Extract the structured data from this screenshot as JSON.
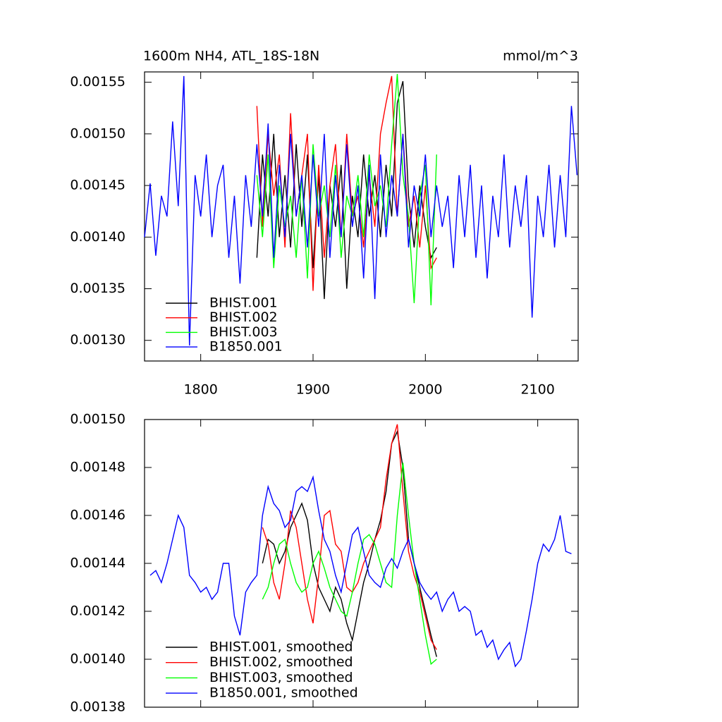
{
  "chart_data": [
    {
      "type": "line",
      "title": "1600m NH4, ATL_18S-18N",
      "units": "mmol/m^3",
      "xlim": [
        1750,
        2136
      ],
      "xticks": [
        1800,
        1900,
        2000,
        2100
      ],
      "ylim": [
        0.00128,
        0.00156
      ],
      "yticks": [
        {
          "value": 0.0013,
          "label": "0.00130"
        },
        0.00135,
        {
          "value": 0.0014,
          "label": "0.00140"
        },
        0.00145,
        {
          "value": 0.0015,
          "label": "0.00150"
        },
        0.00155
      ],
      "legend": "lower-left",
      "series": [
        {
          "name": "BHIST.001",
          "color": "#000000",
          "x": [
            1850,
            1855,
            1860,
            1865,
            1870,
            1875,
            1880,
            1885,
            1890,
            1895,
            1900,
            1905,
            1910,
            1915,
            1920,
            1925,
            1930,
            1935,
            1940,
            1945,
            1950,
            1955,
            1960,
            1965,
            1970,
            1975,
            1980,
            1985,
            1990,
            1995,
            2000,
            2005,
            2010
          ],
          "values": [
            0.00138,
            0.00148,
            0.00142,
            0.0015,
            0.0014,
            0.00146,
            0.00139,
            0.00149,
            0.00141,
            0.00148,
            0.00137,
            0.00146,
            0.00134,
            0.00145,
            0.00141,
            0.00147,
            0.00135,
            0.00144,
            0.0014,
            0.00148,
            0.00142,
            0.00146,
            0.0014,
            0.00147,
            0.00142,
            0.00153,
            0.001551,
            0.00144,
            0.00139,
            0.00145,
            0.00141,
            0.00138,
            0.00139
          ]
        },
        {
          "name": "BHIST.002",
          "color": "#ff0000",
          "x": [
            1850,
            1855,
            1860,
            1865,
            1870,
            1875,
            1880,
            1885,
            1890,
            1895,
            1900,
            1905,
            1910,
            1915,
            1920,
            1925,
            1930,
            1935,
            1940,
            1945,
            1950,
            1955,
            1960,
            1965,
            1970,
            1975,
            1980,
            1985,
            1990,
            1995,
            2000,
            2005,
            2010
          ],
          "values": [
            0.001527,
            0.00141,
            0.0015,
            0.00144,
            0.00148,
            0.00139,
            0.00152,
            0.00142,
            0.00146,
            0.0015,
            0.001348,
            0.00147,
            0.00138,
            0.00145,
            0.00149,
            0.0014,
            0.0015,
            0.00142,
            0.00144,
            0.00139,
            0.00146,
            0.00141,
            0.0015,
            0.00153,
            0.001556,
            0.00142,
            0.0015,
            0.00141,
            0.00144,
            0.00139,
            0.00145,
            0.00137,
            0.00138
          ]
        },
        {
          "name": "BHIST.003",
          "color": "#00ff00",
          "x": [
            1850,
            1855,
            1860,
            1865,
            1870,
            1875,
            1880,
            1885,
            1890,
            1895,
            1900,
            1905,
            1910,
            1915,
            1920,
            1925,
            1930,
            1935,
            1940,
            1945,
            1950,
            1955,
            1960,
            1965,
            1970,
            1975,
            1980,
            1985,
            1990,
            1995,
            2000,
            2005,
            2010
          ],
          "values": [
            0.00146,
            0.0014,
            0.00148,
            0.00137,
            0.00145,
            0.00141,
            0.00144,
            0.00138,
            0.00146,
            0.00136,
            0.00149,
            0.00142,
            0.00145,
            0.0014,
            0.00147,
            0.00138,
            0.00144,
            0.00142,
            0.00146,
            0.0014,
            0.00148,
            0.00143,
            0.00145,
            0.00141,
            0.00149,
            0.001558,
            0.00146,
            0.00142,
            0.001336,
            0.00144,
            0.00147,
            0.001334,
            0.00148
          ]
        },
        {
          "name": "B1850.001",
          "color": "#0000ff",
          "x": [
            1750,
            1755,
            1760,
            1765,
            1770,
            1775,
            1780,
            1785,
            1790,
            1795,
            1800,
            1805,
            1810,
            1815,
            1820,
            1825,
            1830,
            1835,
            1840,
            1845,
            1850,
            1855,
            1860,
            1865,
            1870,
            1875,
            1880,
            1885,
            1890,
            1895,
            1900,
            1905,
            1910,
            1915,
            1920,
            1925,
            1930,
            1935,
            1940,
            1945,
            1950,
            1955,
            1960,
            1965,
            1970,
            1975,
            1980,
            1985,
            1990,
            1995,
            2000,
            2005,
            2010,
            2015,
            2020,
            2025,
            2030,
            2035,
            2040,
            2045,
            2050,
            2055,
            2060,
            2065,
            2070,
            2075,
            2080,
            2085,
            2090,
            2095,
            2100,
            2105,
            2110,
            2115,
            2120,
            2125,
            2130,
            2135
          ],
          "values": [
            0.0014,
            0.001452,
            0.001382,
            0.00144,
            0.00142,
            0.001512,
            0.00143,
            0.001556,
            0.001295,
            0.00146,
            0.00142,
            0.00148,
            0.0014,
            0.00145,
            0.00147,
            0.00138,
            0.00144,
            0.001355,
            0.00146,
            0.00141,
            0.00149,
            0.00142,
            0.00151,
            0.00138,
            0.00147,
            0.0014,
            0.0015,
            0.00142,
            0.00146,
            0.00139,
            0.00148,
            0.00141,
            0.0015,
            0.00138,
            0.00146,
            0.0014,
            0.00149,
            0.00141,
            0.00145,
            0.00136,
            0.00147,
            0.00134,
            0.00148,
            0.0014,
            0.00146,
            0.00142,
            0.0015,
            0.00139,
            0.00145,
            0.00142,
            0.00148,
            0.0014,
            0.00145,
            0.00141,
            0.00144,
            0.00137,
            0.00146,
            0.0014,
            0.00147,
            0.00138,
            0.00145,
            0.00136,
            0.00144,
            0.0014,
            0.00148,
            0.00139,
            0.00145,
            0.00141,
            0.00146,
            0.001322,
            0.00144,
            0.0014,
            0.00147,
            0.00139,
            0.00146,
            0.0014,
            0.001527,
            0.00146
          ]
        }
      ]
    },
    {
      "type": "line",
      "xlim": [
        1750,
        2136
      ],
      "xticks": [
        1800,
        1900,
        2000,
        2100
      ],
      "ylim": [
        0.00138,
        0.0015
      ],
      "yticks": [
        0.00138,
        {
          "value": 0.0014,
          "label": "0.00140"
        },
        0.00142,
        0.00144,
        0.00146,
        0.00148,
        {
          "value": 0.0015,
          "label": "0.00150"
        }
      ],
      "legend": "lower-left",
      "series": [
        {
          "name": "BHIST.001, smoothed",
          "color": "#000000",
          "x": [
            1855,
            1860,
            1865,
            1870,
            1875,
            1880,
            1885,
            1890,
            1895,
            1900,
            1905,
            1910,
            1915,
            1920,
            1925,
            1930,
            1935,
            1940,
            1945,
            1950,
            1955,
            1960,
            1965,
            1970,
            1975,
            1980,
            1985,
            1990,
            1995,
            2000,
            2005,
            2010
          ],
          "values": [
            0.00144,
            0.00145,
            0.001448,
            0.00144,
            0.001445,
            0.001455,
            0.00146,
            0.001465,
            0.001458,
            0.00144,
            0.00143,
            0.001425,
            0.00142,
            0.00143,
            0.001425,
            0.001415,
            0.001408,
            0.00142,
            0.001432,
            0.00144,
            0.00145,
            0.001458,
            0.00147,
            0.00149,
            0.001495,
            0.00148,
            0.00145,
            0.00144,
            0.00143,
            0.00142,
            0.00141,
            0.001401
          ]
        },
        {
          "name": "BHIST.002, smoothed",
          "color": "#ff0000",
          "x": [
            1855,
            1860,
            1865,
            1870,
            1875,
            1880,
            1885,
            1890,
            1895,
            1900,
            1905,
            1910,
            1915,
            1920,
            1925,
            1930,
            1935,
            1940,
            1945,
            1950,
            1955,
            1960,
            1965,
            1970,
            1975,
            1980,
            1985,
            1990,
            1995,
            2000,
            2005,
            2010
          ],
          "values": [
            0.001455,
            0.001448,
            0.001432,
            0.001425,
            0.00144,
            0.001462,
            0.001455,
            0.00144,
            0.001425,
            0.001415,
            0.001435,
            0.00146,
            0.001462,
            0.001448,
            0.001445,
            0.00143,
            0.001428,
            0.001432,
            0.00144,
            0.001445,
            0.00145,
            0.001455,
            0.001475,
            0.00149,
            0.001498,
            0.00147,
            0.001445,
            0.001435,
            0.001428,
            0.001418,
            0.001408,
            0.001404
          ]
        },
        {
          "name": "BHIST.003, smoothed",
          "color": "#00ff00",
          "x": [
            1855,
            1860,
            1865,
            1870,
            1875,
            1880,
            1885,
            1890,
            1895,
            1900,
            1905,
            1910,
            1915,
            1920,
            1925,
            1930,
            1935,
            1940,
            1945,
            1950,
            1955,
            1960,
            1965,
            1970,
            1975,
            1980,
            1985,
            1990,
            1995,
            2000,
            2005,
            2010
          ],
          "values": [
            0.001425,
            0.00143,
            0.00144,
            0.001448,
            0.00145,
            0.00144,
            0.001432,
            0.001428,
            0.00143,
            0.00144,
            0.001445,
            0.001438,
            0.00143,
            0.001425,
            0.00142,
            0.001418,
            0.001428,
            0.00144,
            0.00145,
            0.001452,
            0.001448,
            0.00144,
            0.001432,
            0.00143,
            0.00146,
            0.001482,
            0.00146,
            0.00144,
            0.001425,
            0.00141,
            0.001398,
            0.0014
          ]
        },
        {
          "name": "B1850.001, smoothed",
          "color": "#0000ff",
          "x": [
            1755,
            1760,
            1765,
            1770,
            1775,
            1780,
            1785,
            1790,
            1795,
            1800,
            1805,
            1810,
            1815,
            1820,
            1825,
            1830,
            1835,
            1840,
            1845,
            1850,
            1855,
            1860,
            1865,
            1870,
            1875,
            1880,
            1885,
            1890,
            1895,
            1900,
            1905,
            1910,
            1915,
            1920,
            1925,
            1930,
            1935,
            1940,
            1945,
            1950,
            1955,
            1960,
            1965,
            1970,
            1975,
            1980,
            1985,
            1990,
            1995,
            2000,
            2005,
            2010,
            2015,
            2020,
            2025,
            2030,
            2035,
            2040,
            2045,
            2050,
            2055,
            2060,
            2065,
            2070,
            2075,
            2080,
            2085,
            2090,
            2095,
            2100,
            2105,
            2110,
            2115,
            2120,
            2125,
            2130
          ],
          "values": [
            0.001435,
            0.001437,
            0.001432,
            0.00144,
            0.00145,
            0.00146,
            0.001455,
            0.001435,
            0.001432,
            0.001428,
            0.00143,
            0.001425,
            0.001428,
            0.00144,
            0.00144,
            0.001418,
            0.00141,
            0.001428,
            0.001432,
            0.001435,
            0.00146,
            0.001472,
            0.001465,
            0.001462,
            0.001455,
            0.001458,
            0.00147,
            0.001472,
            0.00147,
            0.001476,
            0.001462,
            0.00145,
            0.001445,
            0.001435,
            0.001428,
            0.00144,
            0.001452,
            0.001455,
            0.001445,
            0.001435,
            0.001432,
            0.00143,
            0.001438,
            0.001442,
            0.001438,
            0.001445,
            0.00145,
            0.00144,
            0.001432,
            0.001428,
            0.001425,
            0.001428,
            0.00142,
            0.001425,
            0.001428,
            0.00142,
            0.001422,
            0.00142,
            0.00141,
            0.001412,
            0.001405,
            0.001408,
            0.0014,
            0.001404,
            0.001407,
            0.001397,
            0.0014,
            0.001412,
            0.001425,
            0.00144,
            0.001448,
            0.001445,
            0.00145,
            0.00146,
            0.001445,
            0.001444
          ]
        }
      ]
    }
  ]
}
